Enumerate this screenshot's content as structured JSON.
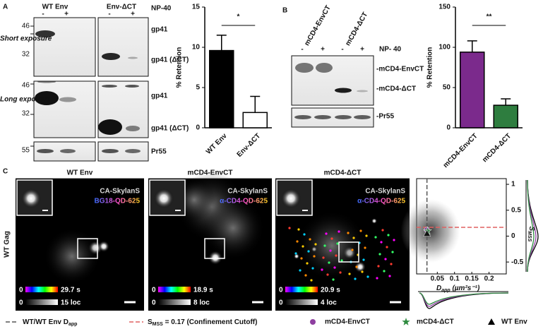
{
  "panel_labels": [
    "A",
    "B",
    "C"
  ],
  "blot_a": {
    "lanes": [
      "WT Env",
      "Env-ΔCT"
    ],
    "treatment": [
      "-",
      "+",
      "-",
      "+"
    ],
    "treatment_label": "NP-40",
    "exposures": [
      "Short exposure",
      "Long exposure"
    ],
    "markers": [
      46,
      32,
      46,
      32,
      55
    ],
    "bands": [
      "gp41",
      "gp41 (ΔCT)",
      "gp41",
      "gp41 (ΔCT)",
      "Pr55"
    ]
  },
  "blot_b": {
    "lanes": [
      "mCD4-EnvCT",
      "mCD4-ΔCT"
    ],
    "treatment": [
      "-",
      "+",
      "-",
      "+"
    ],
    "treatment_label": "NP- 40",
    "bands": [
      "-mCD4-EnvCT",
      "-mCD4-ΔCT",
      "-Pr55"
    ]
  },
  "chart_data": [
    {
      "type": "bar",
      "categories": [
        "WT Env",
        "Env-ΔCT"
      ],
      "values": [
        9.6,
        1.9
      ],
      "errors": [
        1.9,
        2.0
      ],
      "colors": [
        "#000000",
        "#ffffff"
      ],
      "ylabel": "% Retention",
      "ylim": [
        0,
        15
      ],
      "yticks": [
        0,
        5,
        10,
        15
      ],
      "significance": "*"
    },
    {
      "type": "bar",
      "categories": [
        "mCD4-EnvCT",
        "mCD4-ΔCT"
      ],
      "values": [
        94,
        28
      ],
      "errors": [
        14,
        8
      ],
      "colors": [
        "#7b2a8c",
        "#2e7d3f"
      ],
      "ylabel": "% Retention",
      "ylim": [
        0,
        150
      ],
      "yticks": [
        0,
        50,
        100,
        150
      ],
      "significance": "**"
    },
    {
      "type": "scatter",
      "xlabel": {
        "main": "D",
        "sub": "app",
        "unit": " (µm²s⁻¹)"
      },
      "ylabel": {
        "main": "S",
        "sub": "MSS"
      },
      "xlim": [
        -0.01,
        0.25
      ],
      "xticks": [
        0.05,
        0.1,
        0.15,
        0.2
      ],
      "ylim": [
        -0.73,
        1.11
      ],
      "yticks": [
        -0.5,
        0,
        0.5,
        1
      ],
      "vline": 0.02,
      "vline_label": {
        "main": "WT/WT Env D",
        "sub": "app"
      },
      "hline": 0.17,
      "hline_label": {
        "main": "S",
        "sub": "MSS",
        "rest": " = 0.17 (Confinement Cutoff)"
      },
      "series": [
        {
          "name": "mCD4-EnvCT",
          "color": "#8e3fa0",
          "marker": "circle",
          "x": [
            0.02
          ],
          "y": [
            0.12
          ]
        },
        {
          "name": "mCD4-ΔCT",
          "color": "#2e8b3f",
          "marker": "star",
          "x": [
            0.022
          ],
          "y": [
            0.1
          ]
        },
        {
          "name": "WT Env",
          "color": "#000000",
          "marker": "triangle",
          "x": [
            0.02
          ],
          "y": [
            0.05
          ]
        }
      ]
    }
  ],
  "panel_c": {
    "row_label": "WT Gag",
    "images": [
      {
        "title": "WT Env",
        "channel": "CA-SkylanS",
        "probe": "BG18-QD-625",
        "zero": "0",
        "time": "29.7 s",
        "loc": "15 loc"
      },
      {
        "title": "mCD4-EnvCT",
        "channel": "CA-SkylanS",
        "probe": "α-CD4-QD-625",
        "zero": "0",
        "time": "18.9 s",
        "loc": "8 loc"
      },
      {
        "title": "mCD4-ΔCT",
        "channel": "CA-SkylanS",
        "probe": "α-CD4-QD-625",
        "zero": "0",
        "time": "20.9 s",
        "loc": "4 loc"
      }
    ]
  }
}
